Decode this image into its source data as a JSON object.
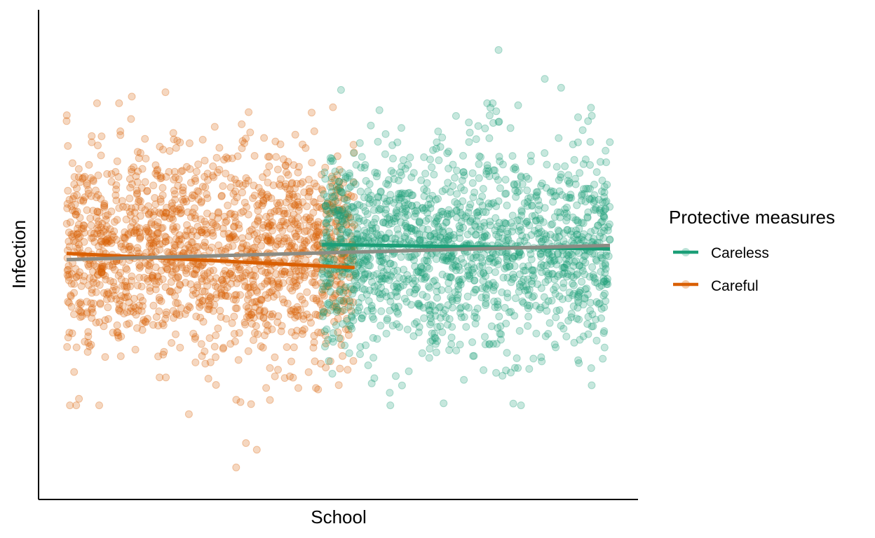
{
  "chart_data": {
    "type": "scatter",
    "xlabel": "School",
    "ylabel": "Infection",
    "xlim": [
      0,
      1
    ],
    "ylim": [
      -5,
      5
    ],
    "grid": false,
    "legend": {
      "title": "Protective measures",
      "placement": "right",
      "entries": [
        "Careless",
        "Careful"
      ]
    },
    "colors": {
      "Careless": "#1b9e77",
      "Careful": "#d95f02",
      "overall": "#8c8c84",
      "axis": "#000000"
    },
    "series": [
      {
        "name": "Careless",
        "point_alpha": 0.25,
        "x_range": [
          0.47,
          1.0
        ],
        "y_center": 0.1,
        "y_spread": 1.15,
        "n_points": 1600,
        "highlight_points": [
          {
            "x": 0.795,
            "y": 4.6
          },
          {
            "x": 0.88,
            "y": 3.95
          },
          {
            "x": 0.91,
            "y": 3.75
          },
          {
            "x": 0.965,
            "y": 3.3
          },
          {
            "x": 0.505,
            "y": 3.7
          },
          {
            "x": 0.78,
            "y": 3.3
          },
          {
            "x": 0.555,
            "y": -2.5
          },
          {
            "x": 0.54,
            "y": -2.25
          },
          {
            "x": 0.99,
            "y": -2.1
          },
          {
            "x": 0.96,
            "y": -1.8
          }
        ],
        "fit_line": {
          "x": [
            0.47,
            1.0
          ],
          "y": [
            0.22,
            0.12
          ]
        }
      },
      {
        "name": "Careful",
        "point_alpha": 0.25,
        "x_range": [
          0.0,
          0.53
        ],
        "y_center": 0.0,
        "y_spread": 1.15,
        "n_points": 1600,
        "highlight_points": [
          {
            "x": 0.182,
            "y": 3.65
          },
          {
            "x": 0.12,
            "y": 3.55
          },
          {
            "x": 0.0,
            "y": 3.0
          },
          {
            "x": 0.335,
            "y": 3.2
          },
          {
            "x": 0.312,
            "y": -4.8
          },
          {
            "x": 0.33,
            "y": -4.25
          },
          {
            "x": 0.35,
            "y": -4.4
          },
          {
            "x": 0.225,
            "y": -3.6
          },
          {
            "x": 0.06,
            "y": -3.4
          }
        ],
        "fit_line": {
          "x": [
            0.0,
            0.53
          ],
          "y": [
            0.02,
            -0.3
          ]
        }
      }
    ],
    "overall_fit_line": {
      "x": [
        0.0,
        1.0
      ],
      "y": [
        -0.12,
        0.2
      ]
    }
  }
}
